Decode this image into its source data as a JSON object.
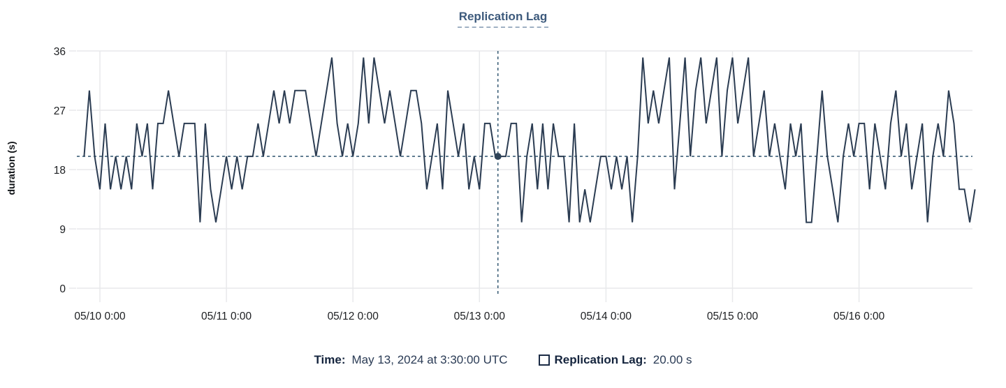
{
  "title": "Replication Lag",
  "tooltip": {
    "time_label": "Time:",
    "time_value": "May 13, 2024 at 3:30:00 UTC",
    "series_label": "Replication Lag:",
    "series_value": "20.00 s"
  },
  "colors": {
    "series_line": "#2b3c52",
    "title_link": "#3d5a7c",
    "crosshair": "#3e6179",
    "crosshair_dot": "#2f4459",
    "grid": "#e8e9eb",
    "axis_text": "#1c1e21",
    "legend_label": "#14243d",
    "legend_value": "#2a3b55"
  },
  "chart_data": {
    "type": "line",
    "title": "Replication Lag",
    "xlabel": "",
    "ylabel": "duration (s)",
    "ylim": [
      0,
      36
    ],
    "y_ticks": [
      0,
      9,
      18,
      27,
      36
    ],
    "x_tick_labels": [
      "05/10 0:00",
      "05/11 0:00",
      "05/12 0:00",
      "05/13 0:00",
      "05/14 0:00",
      "05/15 0:00",
      "05/16 0:00"
    ],
    "x_tick_hours": [
      0,
      24,
      48,
      72,
      96,
      120,
      144
    ],
    "x_start_hours": -3,
    "sample_interval_hours": 1,
    "grid": true,
    "legend_position": "bottom",
    "series": [
      {
        "name": "Replication Lag",
        "values": [
          20,
          30,
          20,
          15,
          25,
          15,
          20,
          15,
          20,
          15,
          25,
          20,
          25,
          15,
          25,
          25,
          30,
          25,
          20,
          25,
          25,
          25,
          10,
          25,
          15,
          10,
          15,
          20,
          15,
          20,
          15,
          20,
          20,
          25,
          20,
          25,
          30,
          25,
          30,
          25,
          30,
          30,
          30,
          25,
          20,
          25,
          30,
          35,
          25,
          20,
          25,
          20,
          25,
          35,
          25,
          35,
          30,
          25,
          30,
          25,
          20,
          25,
          30,
          30,
          25,
          15,
          20,
          25,
          15,
          30,
          25,
          20,
          25,
          15,
          20,
          15,
          25,
          25,
          20,
          20,
          20,
          25,
          25,
          10,
          20,
          25,
          15,
          25,
          15,
          25,
          20,
          20,
          10,
          25,
          10,
          15,
          10,
          15,
          20,
          20,
          15,
          20,
          15,
          20,
          10,
          20,
          35,
          25,
          30,
          25,
          30,
          35,
          15,
          25,
          35,
          20,
          30,
          35,
          25,
          30,
          35,
          20,
          30,
          35,
          25,
          30,
          35,
          20,
          25,
          30,
          20,
          25,
          20,
          15,
          25,
          20,
          25,
          10,
          10,
          20,
          30,
          20,
          15,
          10,
          20,
          25,
          20,
          25,
          25,
          15,
          25,
          20,
          15,
          25,
          30,
          20,
          25,
          15,
          20,
          25,
          10,
          20,
          25,
          20,
          30,
          25,
          15,
          15,
          10,
          15
        ]
      }
    ],
    "crosshair": {
      "x_hours": 75.5,
      "y_value": 20,
      "time": "May 13, 2024 at 3:30:00 UTC",
      "value_label": "20.00 s"
    }
  }
}
